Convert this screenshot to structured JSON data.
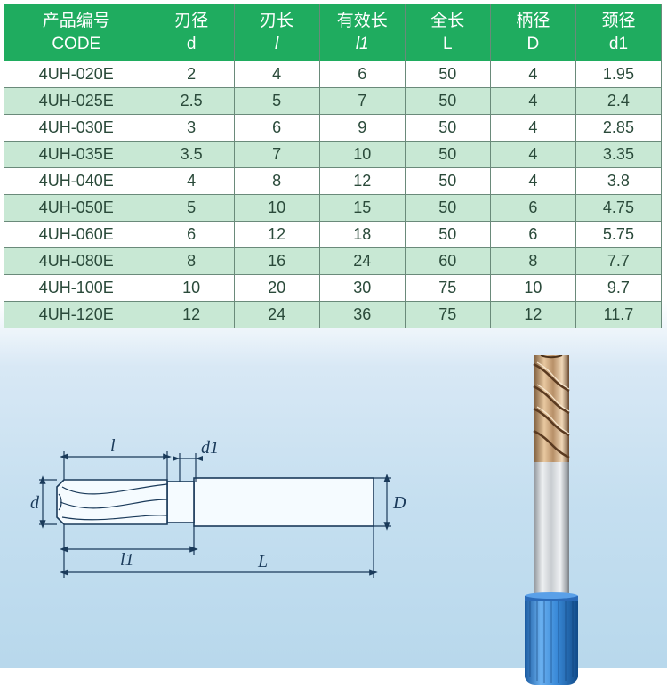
{
  "table": {
    "header_bg": "#1fac5f",
    "header_fg": "#ffffff",
    "border_color": "#6a8a7a",
    "row_alt_bg": "#c8e8d4",
    "row_bg": "#ffffff",
    "cell_fg": "#2a4a3a",
    "columns": [
      {
        "cn": "产品编号",
        "en": "CODE",
        "italic": false
      },
      {
        "cn": "刃径",
        "en": "d",
        "italic": false
      },
      {
        "cn": "刃长",
        "en": "l",
        "italic": true
      },
      {
        "cn": "有效长",
        "en": "l1",
        "italic": true
      },
      {
        "cn": "全长",
        "en": "L",
        "italic": false
      },
      {
        "cn": "柄径",
        "en": "D",
        "italic": false
      },
      {
        "cn": "颈径",
        "en": "d1",
        "italic": false
      }
    ],
    "rows": [
      [
        "4UH-020E",
        "2",
        "4",
        "6",
        "50",
        "4",
        "1.95"
      ],
      [
        "4UH-025E",
        "2.5",
        "5",
        "7",
        "50",
        "4",
        "2.4"
      ],
      [
        "4UH-030E",
        "3",
        "6",
        "9",
        "50",
        "4",
        "2.85"
      ],
      [
        "4UH-035E",
        "3.5",
        "7",
        "10",
        "50",
        "4",
        "3.35"
      ],
      [
        "4UH-040E",
        "4",
        "8",
        "12",
        "50",
        "4",
        "3.8"
      ],
      [
        "4UH-050E",
        "5",
        "10",
        "15",
        "50",
        "6",
        "4.75"
      ],
      [
        "4UH-060E",
        "6",
        "12",
        "18",
        "50",
        "6",
        "5.75"
      ],
      [
        "4UH-080E",
        "8",
        "16",
        "24",
        "60",
        "8",
        "7.7"
      ],
      [
        "4UH-100E",
        "10",
        "20",
        "30",
        "75",
        "10",
        "9.7"
      ],
      [
        "4UH-120E",
        "12",
        "24",
        "36",
        "75",
        "12",
        "11.7"
      ]
    ]
  },
  "diagram": {
    "labels": {
      "d": "d",
      "l": "l",
      "l1": "l1",
      "L": "L",
      "D": "D",
      "d1": "d1"
    },
    "line_color": "#1a3a5a",
    "bg_fill": "#f5fbff"
  },
  "photo": {
    "shank_color_light": "#e8e8ea",
    "shank_color_dark": "#9aa0a6",
    "flute_color_light": "#d8b088",
    "flute_color_dark": "#8a6a4a",
    "collet_color": "#3a8ad8",
    "collet_color_dark": "#1a5aa0"
  }
}
